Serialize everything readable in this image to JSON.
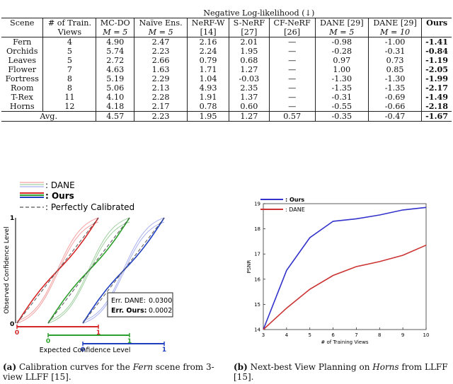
{
  "table": {
    "group_header": "Negative Log-likelihood (↓)",
    "columns": [
      {
        "l1": "Scene",
        "l2": ""
      },
      {
        "l1": "# of Train.",
        "l2": "Views"
      },
      {
        "l1": "MC-DO",
        "l2": "M = 5"
      },
      {
        "l1": "Naïve Ens.",
        "l2": "M = 5"
      },
      {
        "l1": "NeRF-W",
        "l2": "[14]"
      },
      {
        "l1": "S-NeRF",
        "l2": "[27]"
      },
      {
        "l1": "CF-NeRF",
        "l2": "[26]"
      },
      {
        "l1": "DANE [29]",
        "l2": "M = 5"
      },
      {
        "l1": "DANE [29]",
        "l2": "M = 10"
      },
      {
        "l1": "Ours",
        "l2": ""
      }
    ],
    "rows": [
      [
        "Fern",
        "4",
        "4.90",
        "2.47",
        "2.16",
        "2.01",
        "—",
        "-0.98",
        "-1.00",
        "-1.41"
      ],
      [
        "Orchids",
        "5",
        "5.74",
        "2.23",
        "2.24",
        "1.95",
        "—",
        "-0.28",
        "-0.31",
        "-0.84"
      ],
      [
        "Leaves",
        "5",
        "2.72",
        "2.66",
        "0.79",
        "0.68",
        "—",
        "0.97",
        "0.73",
        "-1.19"
      ],
      [
        "Flower",
        "7",
        "4.63",
        "1.63",
        "1.71",
        "1.27",
        "—",
        "1.00",
        "0.85",
        "-2.05"
      ],
      [
        "Fortress",
        "8",
        "5.19",
        "2.29",
        "1.04",
        "-0.03",
        "—",
        "-1.30",
        "-1.30",
        "-1.99"
      ],
      [
        "Room",
        "8",
        "5.06",
        "2.13",
        "4.93",
        "2.35",
        "—",
        "-1.35",
        "-1.35",
        "-2.17"
      ],
      [
        "T-Rex",
        "11",
        "4.10",
        "2.28",
        "1.91",
        "1.37",
        "—",
        "-0.31",
        "-0.69",
        "-1.49"
      ],
      [
        "Horns",
        "12",
        "4.18",
        "2.17",
        "0.78",
        "0.60",
        "—",
        "-0.55",
        "-0.66",
        "-2.18"
      ]
    ],
    "avg": [
      "Avg.",
      "4.57",
      "2.23",
      "1.95",
      "1.27",
      "0.57",
      "-0.35",
      "-0.47",
      "-1.67"
    ]
  },
  "figA": {
    "legend": [
      ": DANE",
      ": Ours",
      ": Perfectly Calibrated"
    ],
    "ylabel": "Observed Confidence Level",
    "xlabel": "Expected Confidence Level",
    "err_dane_label": "Err. DANE:",
    "err_dane_value": "0.0300",
    "err_ours_label": "Err. Ours:",
    "err_ours_value": "0.0002",
    "tick_y1": "1",
    "tick_y0": "0",
    "axis_ticks": [
      {
        "zero": "0",
        "one": "1",
        "color": "#d62728"
      },
      {
        "zero": "0",
        "one": "1",
        "color": "#2ca02c"
      },
      {
        "zero": "0",
        "one": "1",
        "color": "#1f3fbf"
      }
    ],
    "caption_label": "(a)",
    "caption_pre": "Calibration curves for the ",
    "caption_scene": "Fern",
    "caption_post": " scene from 3-view LLFF [15]."
  },
  "chart_data": {
    "type": "line",
    "xlabel": "# of Training Views",
    "ylabel": "PSNR",
    "xlim": [
      3,
      10
    ],
    "ylim": [
      14,
      19
    ],
    "x": [
      3,
      4,
      5,
      6,
      7,
      8,
      9,
      10
    ],
    "xticks": [
      "3",
      "4",
      "5",
      "6",
      "7",
      "8",
      "9",
      "10"
    ],
    "yticks": [
      "14",
      "15",
      "16",
      "17",
      "18",
      "19"
    ],
    "legend_placement": "top-left",
    "series": [
      {
        "name": ": Ours",
        "color": "#3333cc",
        "values": [
          14.0,
          16.35,
          17.65,
          18.3,
          18.4,
          18.55,
          18.75,
          18.85
        ]
      },
      {
        "name": ": DANE",
        "color": "#cc3333",
        "values": [
          14.0,
          14.85,
          15.6,
          16.15,
          16.5,
          16.7,
          16.95,
          17.35
        ]
      }
    ],
    "caption_label": "(b)",
    "caption_pre": "Next-best View Planning on ",
    "caption_scene": "Horns",
    "caption_post": " from LLFF [15]."
  }
}
